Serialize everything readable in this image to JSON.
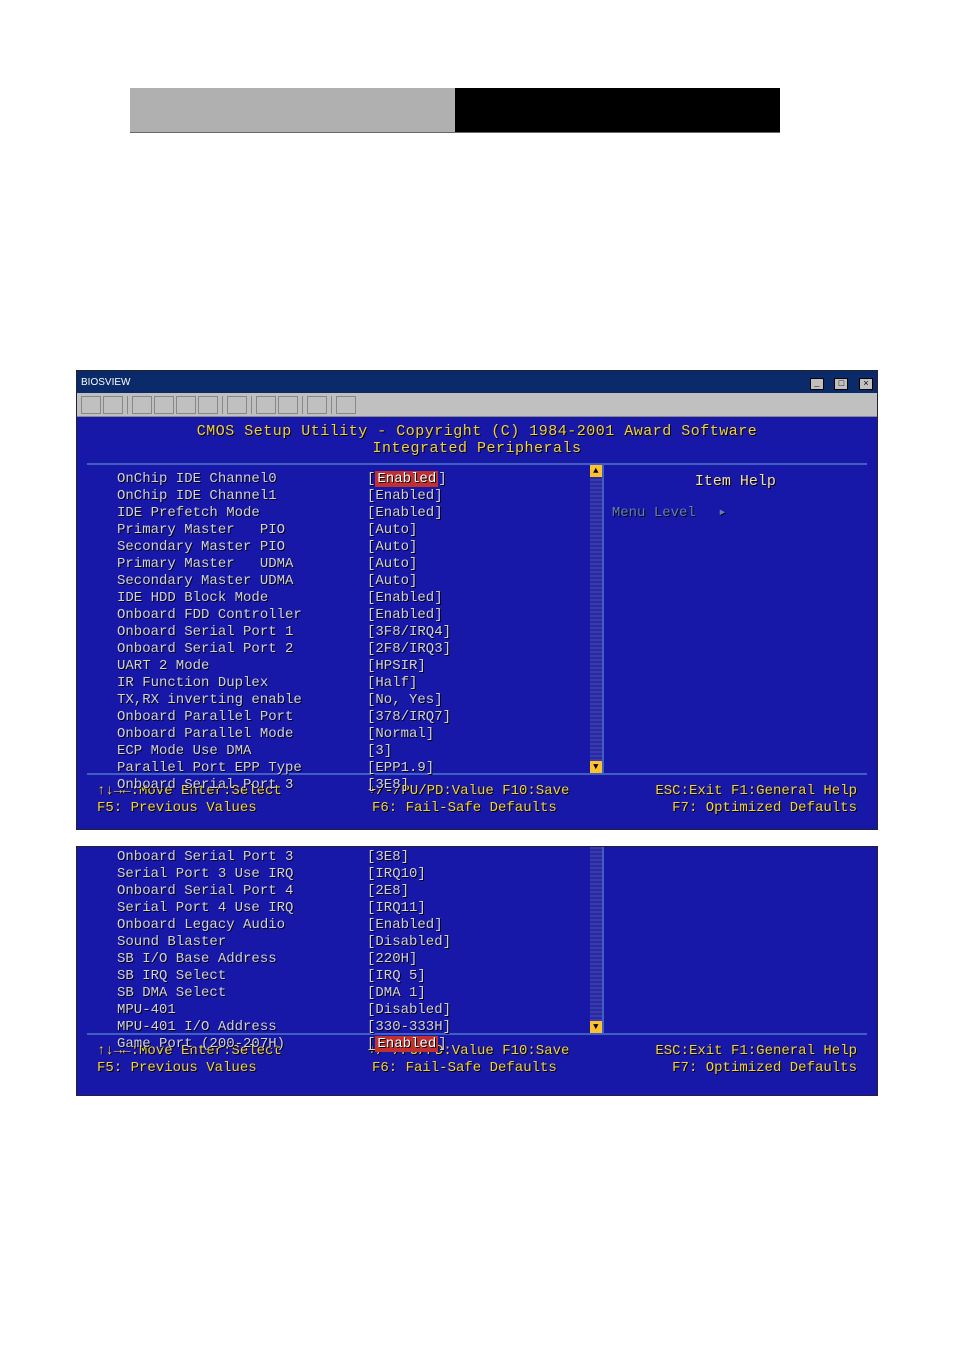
{
  "window": {
    "title": "BIOSVIEW",
    "min": "_",
    "max": "□",
    "close": "×"
  },
  "bios_header": {
    "line1": "CMOS Setup Utility - Copyright (C) 1984-2001 Award Software",
    "line2": "Integrated Peripherals"
  },
  "help": {
    "title": "Item Help",
    "menu_level": "Menu Level",
    "arrow": "▸"
  },
  "main_rows": [
    {
      "label": "OnChip IDE Channel0",
      "value": "Enabled",
      "highlight": true
    },
    {
      "label": "OnChip IDE Channel1",
      "value": "Enabled"
    },
    {
      "label": "IDE Prefetch Mode",
      "value": "Enabled"
    },
    {
      "label": "Primary Master   PIO",
      "value": "Auto"
    },
    {
      "label": "Secondary Master PIO",
      "value": "Auto"
    },
    {
      "label": "Primary Master   UDMA",
      "value": "Auto"
    },
    {
      "label": "Secondary Master UDMA",
      "value": "Auto"
    },
    {
      "label": "IDE HDD Block Mode",
      "value": "Enabled"
    },
    {
      "label": "Onboard FDD Controller",
      "value": "Enabled"
    },
    {
      "label": "Onboard Serial Port 1",
      "value": "3F8/IRQ4"
    },
    {
      "label": "Onboard Serial Port 2",
      "value": "2F8/IRQ3"
    },
    {
      "label": "UART 2 Mode",
      "value": "HPSIR"
    },
    {
      "label": "IR Function Duplex",
      "value": "Half"
    },
    {
      "label": "TX,RX inverting enable",
      "value": "No, Yes"
    },
    {
      "label": "Onboard Parallel Port",
      "value": "378/IRQ7"
    },
    {
      "label": "Onboard Parallel Mode",
      "value": "Normal"
    },
    {
      "label": "ECP Mode Use DMA",
      "value": "3"
    },
    {
      "label": "Parallel Port EPP Type",
      "value": "EPP1.9"
    },
    {
      "label": "Onboard Serial Port 3",
      "value": "3E8"
    }
  ],
  "cont_rows": [
    {
      "label": "Onboard Serial Port 3",
      "value": "3E8"
    },
    {
      "label": "Serial Port 3 Use IRQ",
      "value": "IRQ10"
    },
    {
      "label": "Onboard Serial Port 4",
      "value": "2E8"
    },
    {
      "label": "Serial Port 4 Use IRQ",
      "value": "IRQ11"
    },
    {
      "label": "Onboard Legacy Audio",
      "value": "Enabled"
    },
    {
      "label": "Sound Blaster",
      "value": "Disabled"
    },
    {
      "label": "SB I/O Base Address",
      "value": "220H"
    },
    {
      "label": "SB IRQ Select",
      "value": "IRQ 5"
    },
    {
      "label": "SB DMA Select",
      "value": "DMA 1"
    },
    {
      "label": "MPU-401",
      "value": "Disabled"
    },
    {
      "label": "MPU-401 I/O Address",
      "value": "330-333H"
    },
    {
      "label": "Game Port (200-207H)",
      "value": "Enabled",
      "highlight": true
    }
  ],
  "footer": {
    "l1a": "↑↓→←:Move  Enter:Select",
    "l1b": "+/-/PU/PD:Value  F10:Save",
    "l1c": "ESC:Exit  F1:General Help",
    "l2a": "F5: Previous Values",
    "l2b": "F6: Fail-Safe Defaults",
    "l2c": "F7: Optimized Defaults"
  },
  "colors": {
    "bios_bg": "#1818a8",
    "bios_text": "#d0d0e8",
    "bios_yellow": "#f0d040",
    "highlight_bg": "#c03030"
  }
}
